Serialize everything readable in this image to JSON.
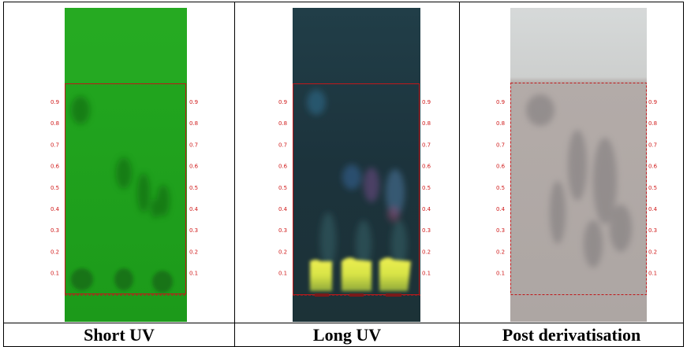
{
  "panels": [
    {
      "caption": "Short UV",
      "rf_marks": [
        "0.9",
        "0.8",
        "0.7",
        "0.6",
        "0.5",
        "0.4",
        "0.3",
        "0.2",
        "0.1"
      ]
    },
    {
      "caption": "Long UV",
      "rf_marks": [
        "0.9",
        "0.8",
        "0.7",
        "0.6",
        "0.5",
        "0.4",
        "0.3",
        "0.2",
        "0.1"
      ]
    },
    {
      "caption": "Post derivatisation",
      "rf_marks": [
        "0.9",
        "0.8",
        "0.7",
        "0.6",
        "0.5",
        "0.4",
        "0.3",
        "0.2",
        "0.1"
      ]
    }
  ],
  "colors": {
    "short_uv_plate": "#1fa31c",
    "long_uv_plate": "#1e3540",
    "post_plate": "#b2aaa8",
    "rf_marker": "#d01818"
  }
}
